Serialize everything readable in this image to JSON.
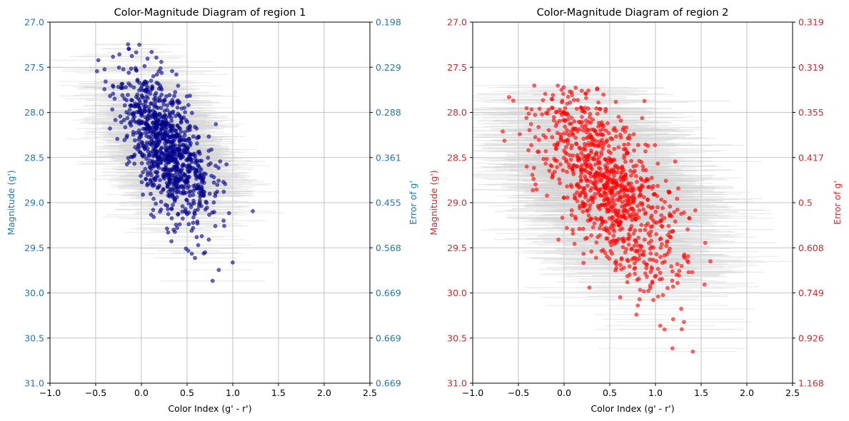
{
  "chart_data": [
    {
      "type": "scatter",
      "title": "Color-Magnitude Diagram of region 1",
      "xlabel": "Color Index (g' - r')",
      "ylabel": "Magnitude (g')",
      "ylabel_right": "Error of g'",
      "xlim": [
        -1.0,
        2.5
      ],
      "ylim": [
        31.0,
        27.0
      ],
      "y_inverted": true,
      "xticks": [
        "-1.0",
        "-0.5",
        "0.0",
        "0.5",
        "1.0",
        "1.5",
        "2.0",
        "2.5"
      ],
      "yticks": [
        "27.0",
        "27.5",
        "28.0",
        "28.5",
        "29.0",
        "29.5",
        "30.0",
        "30.5",
        "31.0"
      ],
      "right_ticks": [
        "0.198",
        "0.229",
        "0.288",
        "0.361",
        "0.455",
        "0.568",
        "0.669",
        "0.669",
        "0.669"
      ],
      "grid": true,
      "axis_color": "#1f77b4",
      "point_color": "#00008b",
      "errorbar_color": "#d3d3d3",
      "points_summary": {
        "n_points": 1000,
        "color_center_at_mag_28": 0.15,
        "color_slope_per_mag": 0.35,
        "color_spread": 0.2,
        "mag_range": [
          27.2,
          29.9
        ],
        "mag_peak": 28.4,
        "xerr_range": [
          0.2,
          0.6
        ]
      }
    },
    {
      "type": "scatter",
      "title": "Color-Magnitude Diagram of region 2",
      "xlabel": "Color Index (g' - r')",
      "ylabel": "Magnitude (g')",
      "ylabel_right": "Error of g'",
      "xlim": [
        -1.0,
        2.5
      ],
      "ylim": [
        31.0,
        27.0
      ],
      "y_inverted": true,
      "xticks": [
        "-1.0",
        "-0.5",
        "0.0",
        "0.5",
        "1.0",
        "1.5",
        "2.0",
        "2.5"
      ],
      "yticks": [
        "27.0",
        "27.5",
        "28.0",
        "28.5",
        "29.0",
        "29.5",
        "30.0",
        "30.5",
        "31.0"
      ],
      "right_ticks": [
        "0.319",
        "0.319",
        "0.355",
        "0.417",
        "0.5",
        "0.608",
        "0.749",
        "0.926",
        "1.168"
      ],
      "grid": true,
      "axis_color": "#d62728",
      "point_color": "#ff0000",
      "errorbar_color": "#d3d3d3",
      "points_summary": {
        "n_points": 1000,
        "color_center_at_mag_28": 0.1,
        "color_slope_per_mag": 0.45,
        "color_spread": 0.3,
        "mag_range": [
          27.7,
          30.9
        ],
        "mag_peak": 28.8,
        "xerr_range": [
          0.4,
          1.0
        ]
      }
    }
  ]
}
